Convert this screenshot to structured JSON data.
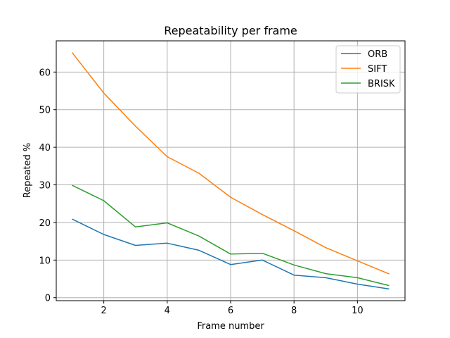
{
  "chart_data": {
    "type": "line",
    "title": "Repeatability per frame",
    "xlabel": "Frame number",
    "ylabel": "Repeated %",
    "x": [
      1,
      2,
      3,
      4,
      5,
      6,
      7,
      8,
      9,
      10,
      11
    ],
    "xlim": [
      0.5,
      11.5
    ],
    "ylim": [
      -0.8,
      68.3
    ],
    "xticks": [
      2,
      4,
      6,
      8,
      10
    ],
    "yticks": [
      0,
      10,
      20,
      30,
      40,
      50,
      60
    ],
    "grid": true,
    "legend_position": "top-right",
    "series": [
      {
        "name": "ORB",
        "color": "#1f77b4",
        "values": [
          20.9,
          16.8,
          13.9,
          14.5,
          12.6,
          8.8,
          10.0,
          6.0,
          5.3,
          3.6,
          2.3
        ]
      },
      {
        "name": "SIFT",
        "color": "#ff7f0e",
        "values": [
          65.2,
          54.4,
          45.6,
          37.5,
          33.1,
          26.7,
          22.1,
          17.8,
          13.3,
          9.8,
          6.3
        ]
      },
      {
        "name": "BRISK",
        "color": "#2ca02c",
        "values": [
          29.9,
          25.8,
          18.8,
          19.9,
          16.4,
          11.6,
          11.8,
          8.7,
          6.4,
          5.3,
          3.2
        ]
      }
    ]
  }
}
